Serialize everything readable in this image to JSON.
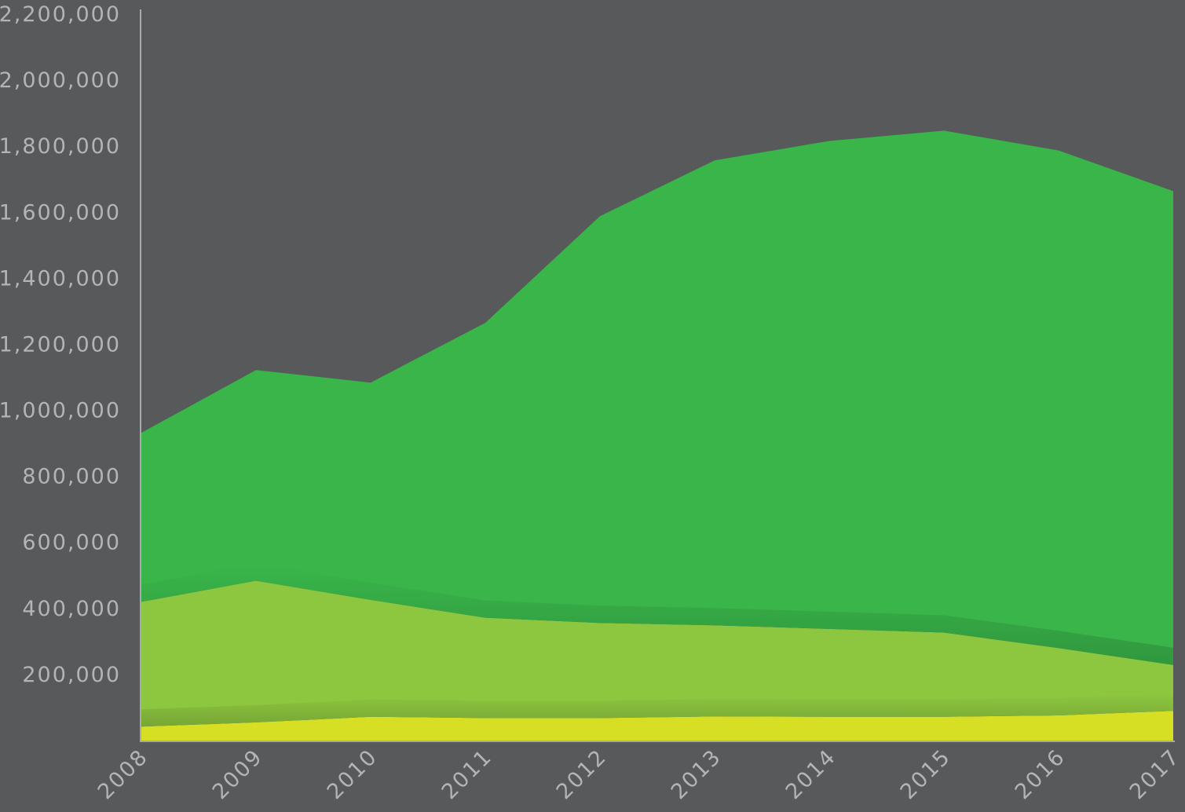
{
  "chart_data": {
    "type": "area",
    "stacked": true,
    "x": [
      "2008",
      "2009",
      "2010",
      "2011",
      "2012",
      "2013",
      "2014",
      "2015",
      "2016",
      "2017"
    ],
    "series": [
      {
        "color": "#d6df23",
        "values": [
          42000,
          55000,
          72000,
          68000,
          68000,
          73000,
          72000,
          72000,
          76000,
          90000
        ]
      },
      {
        "color": "#8dc63f",
        "values": [
          378000,
          429000,
          354000,
          304000,
          288000,
          276000,
          266000,
          255000,
          204000,
          139000
        ]
      },
      {
        "color": "#39b54a",
        "values": [
          512000,
          638000,
          658000,
          893000,
          1232000,
          1408000,
          1478000,
          1520000,
          1507000,
          1435000
        ]
      }
    ],
    "yticks": [
      "200,000",
      "400,000",
      "600,000",
      "800,000",
      "1,000,000",
      "1,200,000",
      "1,400,000",
      "1,600,000",
      "1,800,000",
      "2,000,000",
      "2,200,000"
    ],
    "ylim": [
      0,
      2200000
    ],
    "grid": false,
    "legend": "none",
    "background": "#58595b",
    "axis_color": "#a7a9ac",
    "label_color": "#b3b4b6"
  }
}
